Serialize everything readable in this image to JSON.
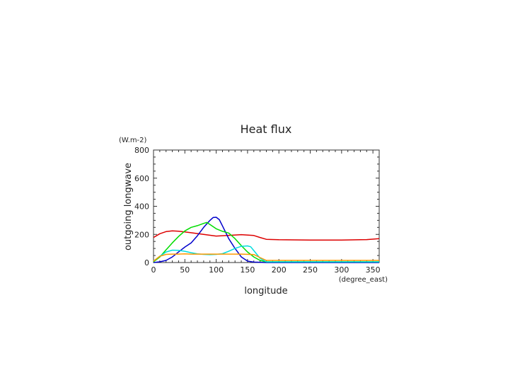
{
  "chart_data": {
    "type": "line",
    "title": "Heat flux",
    "xlabel": "longitude",
    "ylabel": "outgoing longwave",
    "xunit": "(degree_east)",
    "yunit": "(W.m-2)",
    "xlim": [
      0,
      360
    ],
    "ylim": [
      0,
      800
    ],
    "xticks": [
      0,
      50,
      100,
      150,
      200,
      250,
      300,
      350
    ],
    "yticks": [
      0,
      200,
      400,
      600,
      800
    ],
    "grid": false,
    "series": [
      {
        "color": "#dd0000",
        "x": [
          0,
          10,
          20,
          30,
          40,
          60,
          80,
          100,
          120,
          140,
          160,
          170,
          180,
          200,
          250,
          300,
          340,
          360
        ],
        "y": [
          178,
          205,
          220,
          225,
          223,
          212,
          200,
          188,
          193,
          198,
          192,
          178,
          165,
          162,
          160,
          160,
          163,
          170
        ]
      },
      {
        "color": "#0000cc",
        "x": [
          0,
          10,
          20,
          30,
          40,
          50,
          60,
          70,
          80,
          90,
          95,
          100,
          105,
          110,
          120,
          130,
          140,
          150,
          160,
          170,
          180,
          220,
          300,
          360
        ],
        "y": [
          0,
          5,
          15,
          40,
          75,
          110,
          140,
          190,
          250,
          300,
          320,
          322,
          305,
          260,
          170,
          100,
          40,
          10,
          3,
          2,
          0,
          0,
          0,
          0
        ]
      },
      {
        "color": "#00dd00",
        "x": [
          0,
          10,
          20,
          30,
          40,
          50,
          60,
          70,
          80,
          85,
          90,
          100,
          110,
          120,
          130,
          140,
          150,
          160,
          170,
          180,
          220,
          300,
          360
        ],
        "y": [
          5,
          40,
          90,
          140,
          185,
          225,
          250,
          262,
          278,
          285,
          270,
          240,
          222,
          210,
          170,
          120,
          75,
          40,
          15,
          5,
          5,
          5,
          5
        ]
      },
      {
        "color": "#00dddd",
        "x": [
          0,
          10,
          20,
          30,
          40,
          50,
          60,
          70,
          80,
          90,
          100,
          110,
          120,
          130,
          140,
          150,
          155,
          160,
          170,
          180,
          220,
          300,
          360
        ],
        "y": [
          10,
          45,
          75,
          88,
          87,
          80,
          70,
          62,
          58,
          56,
          58,
          63,
          80,
          100,
          115,
          118,
          112,
          85,
          30,
          5,
          5,
          5,
          5
        ]
      },
      {
        "color": "#ff9900",
        "x": [
          0,
          10,
          20,
          30,
          40,
          50,
          60,
          70,
          80,
          90,
          100,
          120,
          140,
          160,
          170,
          180,
          220,
          300,
          360
        ],
        "y": [
          10,
          45,
          58,
          60,
          60,
          62,
          60,
          60,
          60,
          60,
          60,
          60,
          60,
          57,
          35,
          15,
          15,
          15,
          15
        ]
      }
    ]
  }
}
